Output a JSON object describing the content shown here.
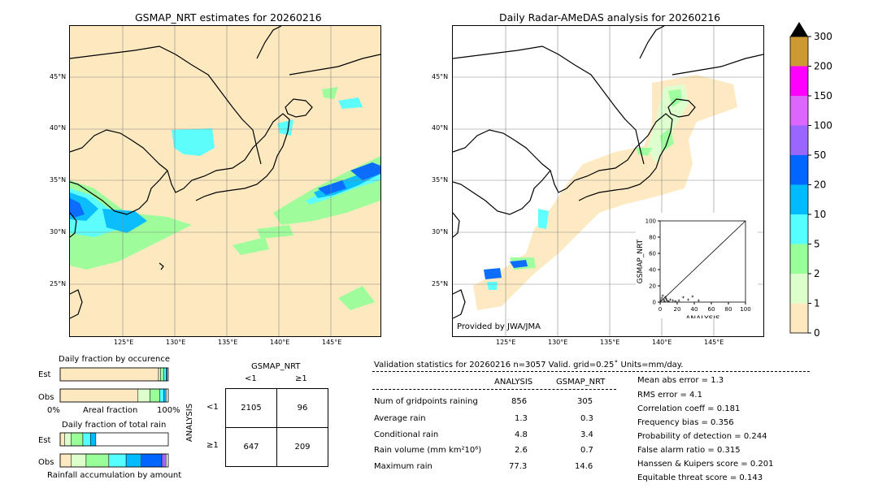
{
  "left_map": {
    "title": "GSMAP_NRT estimates for 20260216",
    "lat_labels": [
      "45°N",
      "40°N",
      "35°N",
      "30°N",
      "25°N"
    ],
    "lon_labels": [
      "125°E",
      "130°E",
      "135°E",
      "140°E",
      "145°E"
    ]
  },
  "right_map": {
    "title": "Daily Radar-AMeDAS analysis for 20260216",
    "lat_labels": [
      "45°N",
      "40°N",
      "35°N",
      "30°N",
      "25°N"
    ],
    "lon_labels": [
      "125°E",
      "130°E",
      "135°E",
      "140°E",
      "145°E"
    ],
    "credit": "Provided by JWA/JMA"
  },
  "colorbar": {
    "labels": [
      "300",
      "200",
      "150",
      "100",
      "50",
      "20",
      "10",
      "5",
      "2",
      "1",
      "0"
    ],
    "colors": [
      "#cc9933",
      "#ff00ff",
      "#dd66ff",
      "#9966ff",
      "#0066ff",
      "#00bbff",
      "#55ffff",
      "#99ff99",
      "#ddffcc",
      "#fde9bf"
    ]
  },
  "chart_data": [
    {
      "type": "scatter",
      "title": "",
      "xlabel": "ANALYSIS",
      "ylabel": "GSMAP_NRT",
      "xlim": [
        0,
        100
      ],
      "ylim": [
        0,
        100
      ],
      "xticks": [
        "0",
        "20",
        "40",
        "60",
        "80",
        "100"
      ],
      "yticks": [
        "0",
        "20",
        "40",
        "60",
        "80",
        "100"
      ],
      "x": [
        1,
        2,
        3,
        4,
        5,
        6,
        7,
        8,
        10,
        12,
        15,
        18,
        22,
        27,
        33,
        38,
        45
      ],
      "y": [
        2,
        5,
        8,
        3,
        1,
        6,
        4,
        2,
        1,
        3,
        2,
        1,
        2,
        6,
        3,
        7,
        2
      ]
    },
    {
      "type": "bar",
      "title": "Daily fraction by occurence",
      "rows": [
        "Est",
        "Obs"
      ],
      "xlabels": [
        "0%",
        "Areal fraction",
        "100%"
      ],
      "segments": {
        "Est": [
          0.91,
          0.02,
          0.03,
          0.02,
          0.01
        ],
        "Obs": [
          0.72,
          0.11,
          0.09,
          0.04,
          0.02
        ]
      }
    },
    {
      "type": "bar",
      "title": "Daily fraction of total rain",
      "rows": [
        "Est",
        "Obs"
      ],
      "xlabels": [
        "Rainfall accumulation by amount"
      ],
      "segments": {
        "Est": [
          0.04,
          0.06,
          0.11,
          0.07,
          0.05
        ],
        "Obs": [
          0.1,
          0.14,
          0.21,
          0.16,
          0.14,
          0.19,
          0.04
        ]
      }
    },
    {
      "type": "table",
      "title": "GSMAP_NRT",
      "col_headers": [
        "<1",
        "≥1"
      ],
      "row_headers": [
        "<1",
        "≥1"
      ],
      "row_axis": "ANALYSIS",
      "cells": [
        [
          "2105",
          "96"
        ],
        [
          "647",
          "209"
        ]
      ]
    }
  ],
  "validation": {
    "header": "Validation statistics for 20260216  n=3057 Valid. grid=0.25˚ Units=mm/day.",
    "col_analysis": "ANALYSIS",
    "col_gsmap": "GSMAP_NRT",
    "rows": [
      {
        "label": "Num of gridpoints raining",
        "a": "856",
        "g": "305"
      },
      {
        "label": "Average rain",
        "a": "1.3",
        "g": "0.3"
      },
      {
        "label": "Conditional rain",
        "a": "4.8",
        "g": "3.4"
      },
      {
        "label": "Rain volume (mm km²10⁶)",
        "a": "2.6",
        "g": "0.7"
      },
      {
        "label": "Maximum rain",
        "a": "77.3",
        "g": "14.6"
      }
    ],
    "scores": [
      "Mean abs error =    1.3",
      "RMS error =    4.1",
      "Correlation coeff =  0.181",
      "Frequency bias =  0.356",
      "Probability of detection =  0.244",
      "False alarm ratio =  0.315",
      "Hanssen & Kuipers score =  0.201",
      "Equitable threat score =  0.143"
    ]
  }
}
